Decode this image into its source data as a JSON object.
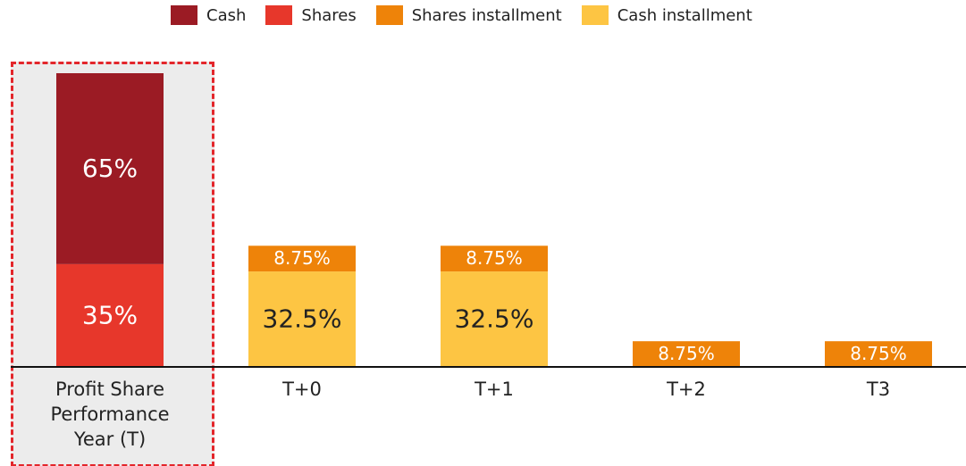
{
  "chart_data": {
    "type": "stacked_bar",
    "categories": [
      "Profit Share Performance Year (T)",
      "T+0",
      "T+1",
      "T+2",
      "T3"
    ],
    "series": [
      {
        "name": "Cash",
        "color": "#9b1b24",
        "values": [
          65,
          null,
          null,
          null,
          null
        ],
        "value_labels": [
          "65%",
          null,
          null,
          null,
          null
        ]
      },
      {
        "name": "Shares",
        "color": "#e7372b",
        "values": [
          35,
          null,
          null,
          null,
          null
        ],
        "value_labels": [
          "35%",
          null,
          null,
          null,
          null
        ]
      },
      {
        "name": "Shares installment",
        "color": "#ee8309",
        "values": [
          null,
          8.75,
          8.75,
          8.75,
          8.75
        ],
        "value_labels": [
          null,
          "8.75%",
          "8.75%",
          "8.75%",
          "8.75%"
        ]
      },
      {
        "name": "Cash installment",
        "color": "#fdc543",
        "values": [
          null,
          32.5,
          32.5,
          null,
          null
        ],
        "value_labels": [
          null,
          "32.5%",
          "32.5%",
          null,
          null
        ]
      }
    ],
    "ylim": [
      0,
      100
    ],
    "legend": "top"
  }
}
